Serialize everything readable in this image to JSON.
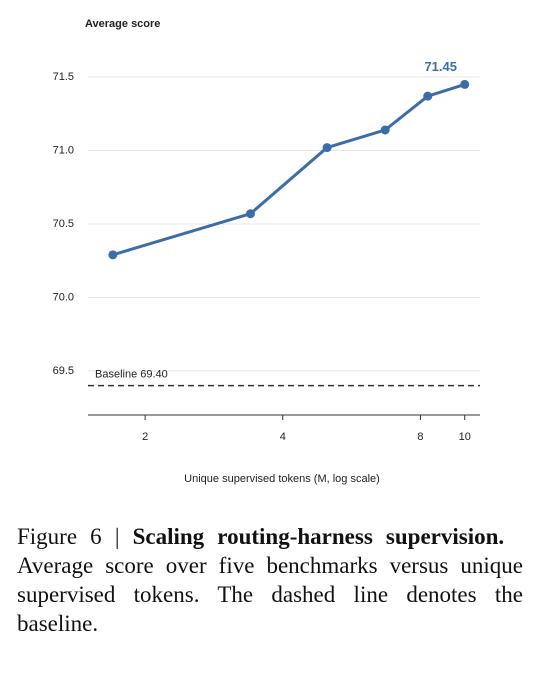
{
  "chart_data": {
    "type": "line",
    "ylabel": "Average score",
    "xlabel": "Unique supervised tokens (M, log scale)",
    "xscale": "log",
    "x": [
      1.7,
      3.4,
      5.0,
      6.7,
      8.3,
      10
    ],
    "series": [
      {
        "color": "#3b6ea8",
        "values": [
          70.29,
          70.57,
          71.02,
          71.14,
          71.37,
          71.45
        ],
        "value_labels": [
          null,
          null,
          null,
          null,
          null,
          "71.45"
        ]
      }
    ],
    "xlim": [
      1.5,
      10.8
    ],
    "ylim": [
      69.2,
      71.65
    ],
    "xticks": [
      2,
      4,
      8,
      10
    ],
    "yticks": [
      {
        "value": 69.5,
        "label": "69.5"
      },
      {
        "value": 70,
        "label": "70.0"
      },
      {
        "value": 70.5,
        "label": "70.5"
      },
      {
        "value": 71,
        "label": "71.0"
      },
      {
        "value": 71.5,
        "label": "71.5"
      }
    ],
    "grid": true,
    "baseline": {
      "value": 69.4,
      "label": "Baseline 69.40"
    }
  },
  "caption": {
    "label": "Figure 6 |",
    "title": "Scaling routing-harness supervision.",
    "text": "Average score over five benchmarks versus unique supervised tokens. The dashed line denotes the baseline."
  }
}
